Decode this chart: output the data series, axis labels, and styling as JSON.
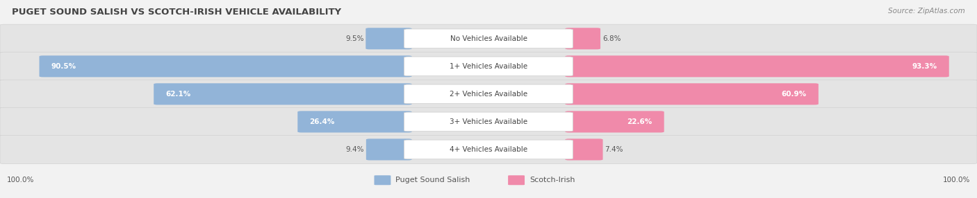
{
  "title": "PUGET SOUND SALISH VS SCOTCH-IRISH VEHICLE AVAILABILITY",
  "source": "Source: ZipAtlas.com",
  "categories": [
    "No Vehicles Available",
    "1+ Vehicles Available",
    "2+ Vehicles Available",
    "3+ Vehicles Available",
    "4+ Vehicles Available"
  ],
  "left_values": [
    9.5,
    90.5,
    62.1,
    26.4,
    9.4
  ],
  "right_values": [
    6.8,
    93.3,
    60.9,
    22.6,
    7.4
  ],
  "left_label": "Puget Sound Salish",
  "right_label": "Scotch-Irish",
  "left_color": "#92b4d8",
  "right_color": "#f08aaa",
  "max_val": 100.0,
  "bg_color": "#f2f2f2",
  "row_bg_color": "#e4e4e4",
  "title_color": "#444444",
  "label_color": "#444444",
  "value_color_outside": "#555555",
  "threshold": 12.0,
  "legend_left_color": "#92b4d8",
  "legend_right_color": "#f08aaa",
  "footer_value": "100.0%",
  "figsize": [
    14.06,
    2.86
  ],
  "dpi": 100
}
